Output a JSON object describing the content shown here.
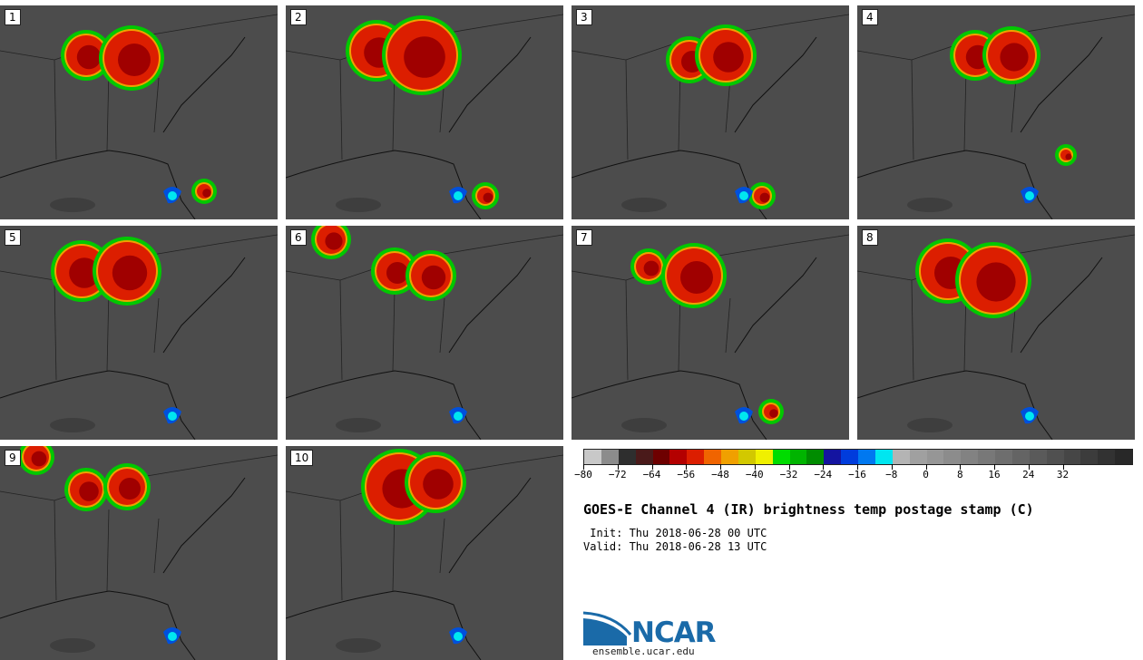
{
  "panels": [
    {
      "label": "1"
    },
    {
      "label": "2"
    },
    {
      "label": "3"
    },
    {
      "label": "4"
    },
    {
      "label": "5"
    },
    {
      "label": "6"
    },
    {
      "label": "7"
    },
    {
      "label": "8"
    },
    {
      "label": "9"
    },
    {
      "label": "10"
    }
  ],
  "colorbar": {
    "colors": [
      "#c8c8c8",
      "#8c8c8c",
      "#2e2e2e",
      "#4a1a1a",
      "#6e0000",
      "#b40000",
      "#dc1e00",
      "#f06400",
      "#f0a000",
      "#d2c800",
      "#f0f000",
      "#00dc00",
      "#00b400",
      "#008c00",
      "#1414a0",
      "#003cdc",
      "#0078f0",
      "#00e6f0",
      "#b4b4b4",
      "#a0a0a0",
      "#969696",
      "#8c8c8c",
      "#828282",
      "#787878",
      "#6e6e6e",
      "#646464",
      "#5a5a5a",
      "#505050",
      "#464646",
      "#3c3c3c",
      "#323232",
      "#282828"
    ],
    "ticks": [
      "−80",
      "−72",
      "−64",
      "−56",
      "−48",
      "−40",
      "−32",
      "−24",
      "−16",
      "−8",
      "0",
      "8",
      "16",
      "24",
      "32"
    ]
  },
  "title": "GOES-E Channel 4 (IR) brightness temp postage stamp (C)",
  "init": " Init: Thu 2018-06-28 00 UTC",
  "valid": "Valid: Thu 2018-06-28 13 UTC",
  "logo_text": "NCAR",
  "url": "ensemble.ucar.edu"
}
